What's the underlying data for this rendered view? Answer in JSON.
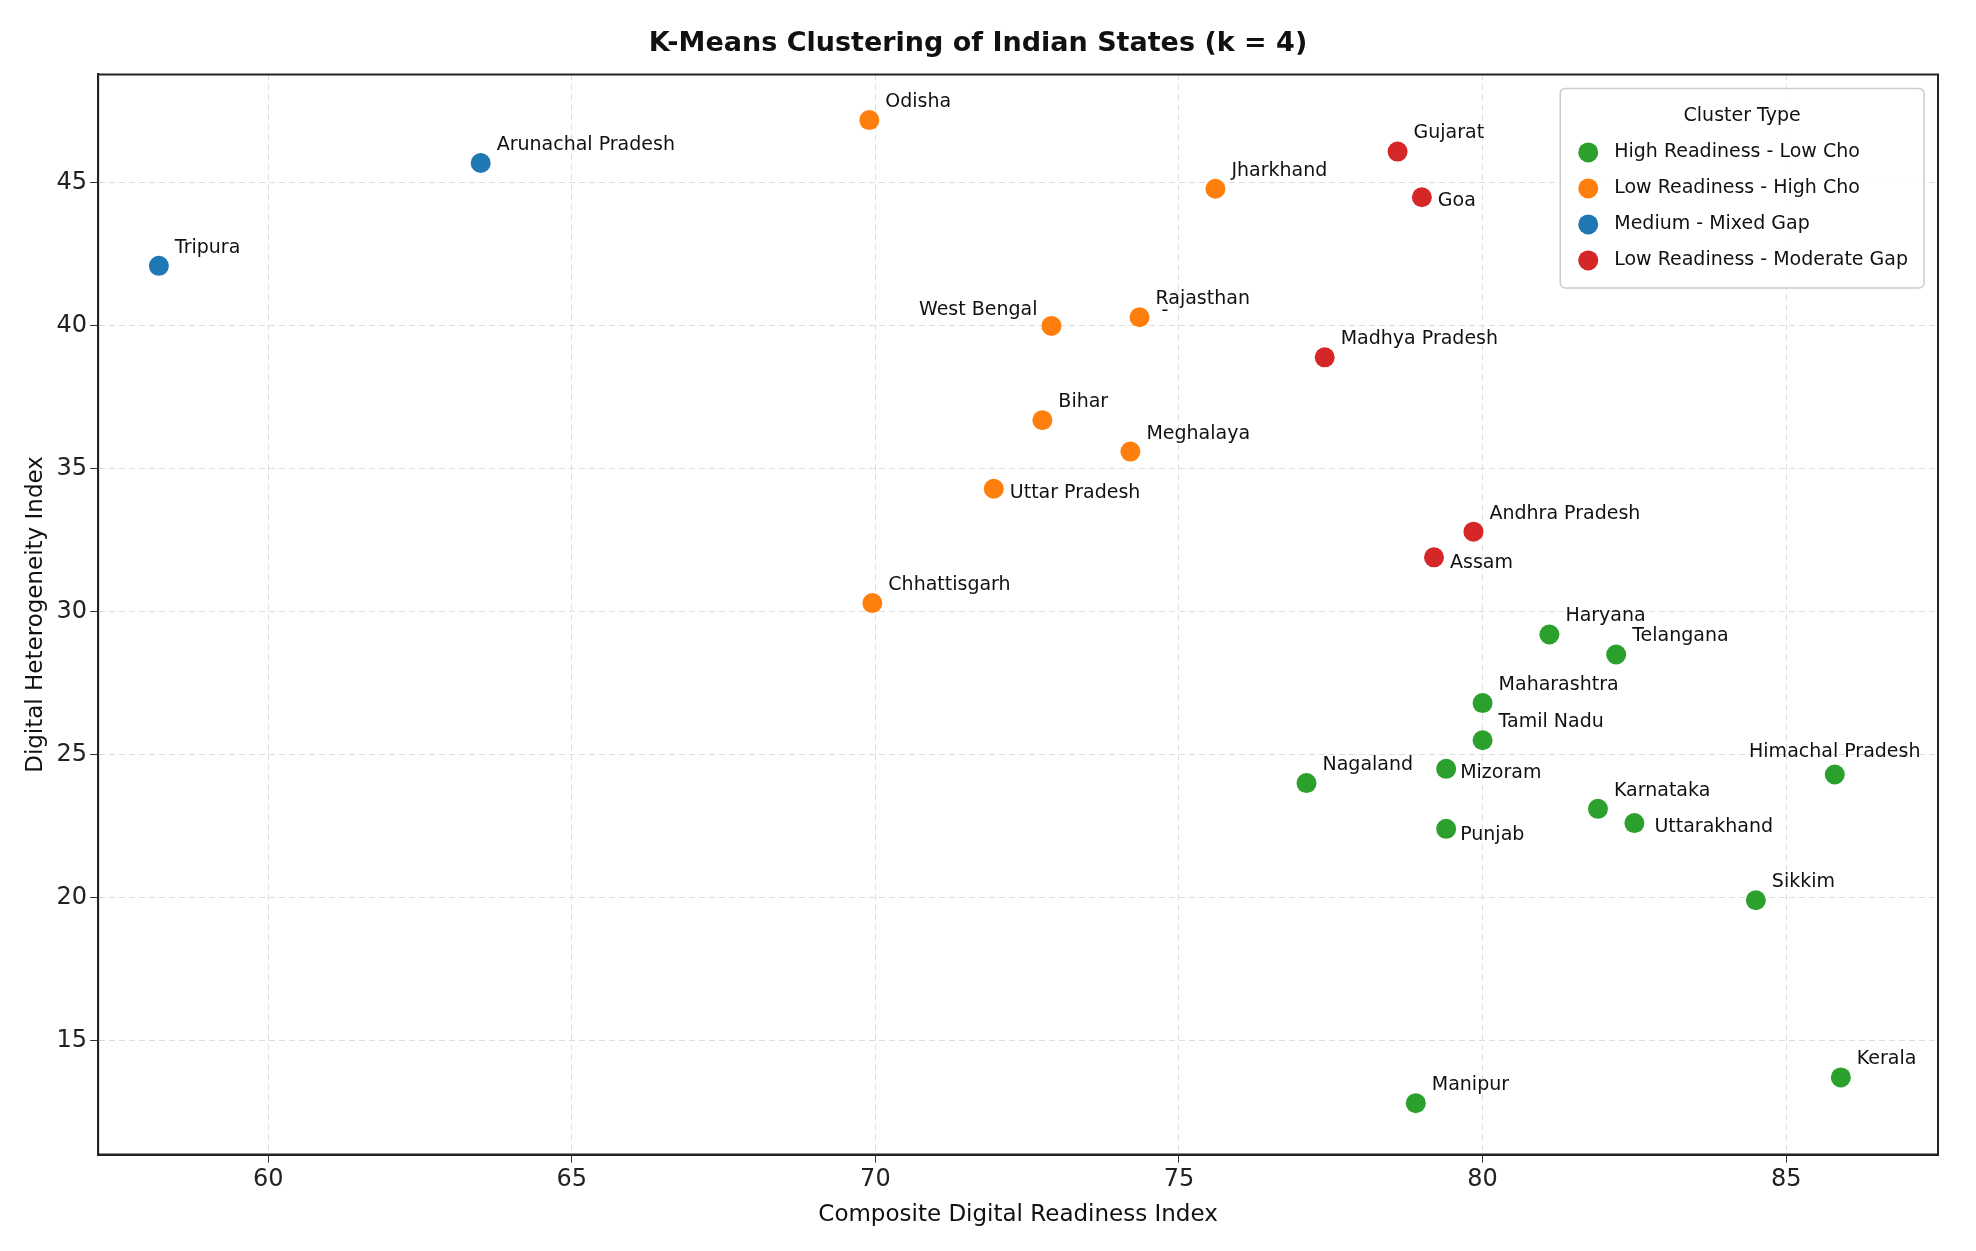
{
  "chart_data": {
    "type": "scatter",
    "title": "K-Means Clustering of Indian States (k = 4)",
    "xlabel": "Composite Digital Readiness Index",
    "ylabel": "Digital Heterogeneity Index",
    "legend_title": "Cluster Type",
    "legend": "top right",
    "grid": true,
    "marker": "circle",
    "xlim": [
      57.2,
      87.5
    ],
    "xticks": [
      60,
      65,
      70,
      75,
      80,
      85
    ],
    "ylim": [
      11,
      48.8
    ],
    "yticks": [
      15,
      20,
      25,
      30,
      35,
      40,
      45
    ],
    "series": [
      {
        "name": "High Readiness - Low Cho",
        "color": "#2ca02c",
        "x": [
          81.1,
          82.2,
          80.0,
          80.0,
          79.4,
          77.1,
          81.9,
          82.5,
          79.4,
          85.8,
          84.5,
          85.9,
          78.9
        ],
        "values": [
          29.2,
          28.5,
          26.8,
          25.5,
          24.5,
          24.0,
          23.1,
          22.6,
          22.4,
          24.3,
          19.9,
          13.7,
          12.8
        ]
      },
      {
        "name": "Low Readiness - High Cho",
        "color": "#ff7f0e",
        "x": [
          69.9,
          75.6,
          72.9,
          74.35,
          72.75,
          74.2,
          71.95,
          69.95
        ],
        "values": [
          47.2,
          44.8,
          40.0,
          40.3,
          36.7,
          35.6,
          34.3,
          30.3
        ]
      },
      {
        "name": "Medium - Mixed Gap",
        "color": "#1f77b4",
        "x": [
          58.2,
          63.5
        ],
        "values": [
          42.1,
          45.7
        ]
      },
      {
        "name": "Low Readiness - Moderate Gap",
        "color": "#d62728",
        "x": [
          78.6,
          79.0,
          77.4,
          79.85,
          79.2
        ],
        "values": [
          46.1,
          44.5,
          38.9,
          32.8,
          31.9
        ]
      }
    ],
    "annotations": [
      {
        "text": "Tripura",
        "x": 58.2,
        "y": 42.1
      },
      {
        "text": "Arunachal Pradesh",
        "x": 63.5,
        "y": 45.7
      },
      {
        "text": "Odisha",
        "x": 69.9,
        "y": 47.2
      },
      {
        "text": "Jharkhand",
        "x": 75.6,
        "y": 44.8
      },
      {
        "text": "Gujarat",
        "x": 78.6,
        "y": 46.1
      },
      {
        "text": "Goa",
        "x": 79.0,
        "y": 44.5
      },
      {
        "text": "West Bengal",
        "x": 72.9,
        "y": 40.0
      },
      {
        "text": "Rajasthan",
        "x": 74.35,
        "y": 40.3
      },
      {
        "text": "-",
        "x": 74.35,
        "y": 40.3
      },
      {
        "text": "Madhya Pradesh",
        "x": 77.4,
        "y": 38.9
      },
      {
        "text": "Bihar",
        "x": 72.75,
        "y": 36.7
      },
      {
        "text": "Meghalaya",
        "x": 74.2,
        "y": 35.6
      },
      {
        "text": "Uttar Pradesh",
        "x": 71.95,
        "y": 34.3
      },
      {
        "text": "Andhra Pradesh",
        "x": 79.85,
        "y": 32.8
      },
      {
        "text": "Assam",
        "x": 79.2,
        "y": 31.9
      },
      {
        "text": "Chhattisgarh",
        "x": 69.95,
        "y": 30.3
      },
      {
        "text": "Haryana",
        "x": 81.1,
        "y": 29.2
      },
      {
        "text": "Telangana",
        "x": 82.2,
        "y": 28.5
      },
      {
        "text": "Maharashtra",
        "x": 80.0,
        "y": 26.8
      },
      {
        "text": "Tamil Nadu",
        "x": 80.0,
        "y": 25.5
      },
      {
        "text": "Mizoram",
        "x": 79.4,
        "y": 24.5
      },
      {
        "text": "Nagaland",
        "x": 77.1,
        "y": 24.0
      },
      {
        "text": "Karnataka",
        "x": 81.9,
        "y": 23.1
      },
      {
        "text": "Uttarakhand",
        "x": 82.5,
        "y": 22.6
      },
      {
        "text": "Punjab",
        "x": 79.4,
        "y": 22.4
      },
      {
        "text": "Himachal Pradesh",
        "x": 85.8,
        "y": 24.3
      },
      {
        "text": "Sikkim",
        "x": 84.5,
        "y": 19.9
      },
      {
        "text": "Kerala",
        "x": 85.9,
        "y": 13.7
      },
      {
        "text": "Manipur",
        "x": 78.9,
        "y": 12.8
      }
    ]
  }
}
